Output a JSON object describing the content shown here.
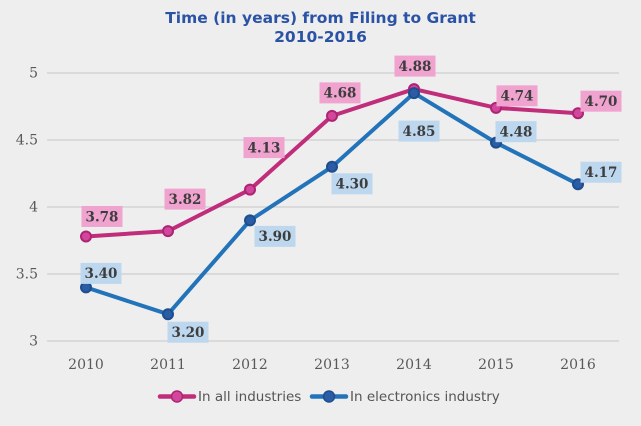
{
  "title": {
    "line1": "Time (in years) from Filing to Grant",
    "line2": "2010-2016"
  },
  "chart_data": {
    "type": "line",
    "categories": [
      "2010",
      "2011",
      "2012",
      "2013",
      "2014",
      "2015",
      "2016"
    ],
    "series": [
      {
        "name": "In all industries",
        "values": [
          3.78,
          3.82,
          4.13,
          4.68,
          4.88,
          4.74,
          4.7
        ],
        "labels": [
          "3.78",
          "3.82",
          "4.13",
          "4.68",
          "4.88",
          "4.74",
          "4.70"
        ],
        "color": "#c02d7b",
        "marker_fill": "#d2479c",
        "marker_stroke": "#ad2472",
        "label_bg": "#f0a3cf",
        "label_offsets": [
          [
            16,
            -20
          ],
          [
            17,
            -32
          ],
          [
            14,
            -42
          ],
          [
            8,
            -23
          ],
          [
            1,
            -23
          ],
          [
            21,
            -12
          ],
          [
            23,
            -12
          ]
        ]
      },
      {
        "name": "In electronics industry",
        "values": [
          3.4,
          3.2,
          3.9,
          4.3,
          4.85,
          4.48,
          4.17
        ],
        "labels": [
          "3.40",
          "3.20",
          "3.90",
          "4.30",
          "4.85",
          "4.48",
          "4.17"
        ],
        "color": "#2273b9",
        "marker_fill": "#2b5ca4",
        "marker_stroke": "#1d4e8f",
        "label_bg": "#bdd7ee",
        "label_offsets": [
          [
            15,
            -14
          ],
          [
            20,
            18
          ],
          [
            25,
            16
          ],
          [
            20,
            17
          ],
          [
            5,
            38
          ],
          [
            20,
            -11
          ],
          [
            23,
            -12
          ]
        ]
      }
    ],
    "ylim": [
      3,
      5
    ],
    "yticks": [
      "5",
      "4.5",
      "4",
      "3.5",
      "3"
    ],
    "ytick_values": [
      5,
      4.5,
      4,
      3.5,
      3
    ],
    "grid": true,
    "legend_position": "bottom",
    "colors": {
      "background": "#eeeeee",
      "grid": "#c7c7c7",
      "title": "#2a52a5",
      "tick_text": "#595959",
      "data_label_text": "#3d3d3d",
      "legend_text": "#555555"
    }
  }
}
